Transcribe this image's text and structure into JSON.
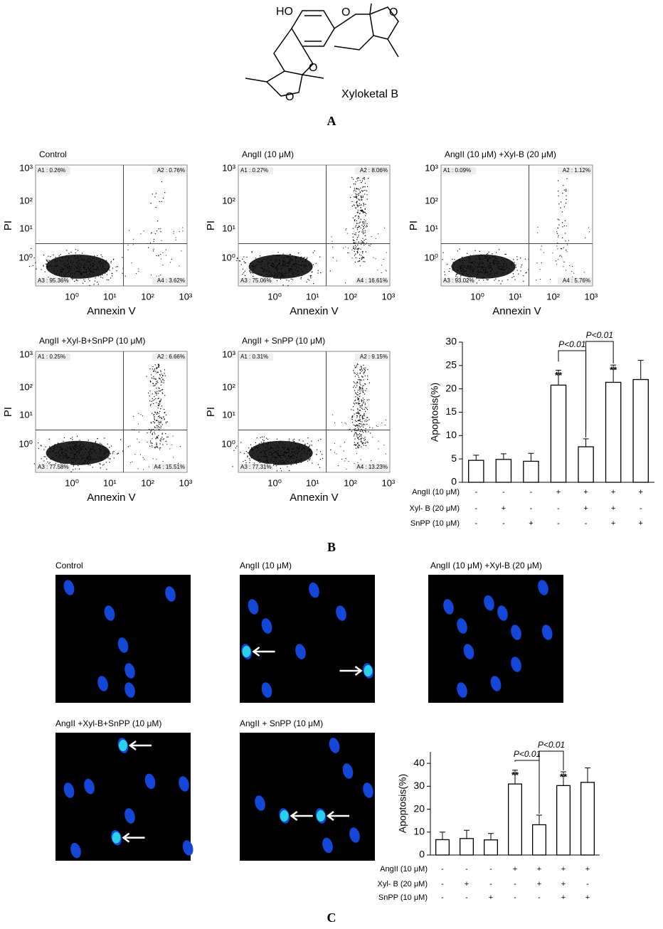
{
  "panel_a": {
    "label": "A",
    "compound": "Xyloketal B",
    "hydroxyl": "HO",
    "oxygen": "O"
  },
  "panel_b": {
    "label": "B",
    "x_label": "Annexin V",
    "y_label": "PI",
    "log_ticks": [
      "10⁰",
      "10¹",
      "10²",
      "10³"
    ],
    "flow_plots": [
      {
        "title": "Control",
        "quadrants": [
          "A1 : 0.26%",
          "A2 : 0.76%",
          "A3 : 95.36%",
          "A4 : 3.62%"
        ]
      },
      {
        "title": "AngII (10 μM)",
        "quadrants": [
          "A1 : 0.27%",
          "A2 : 8.06%",
          "A3 : 75.06%",
          "A4 : 16.61%"
        ]
      },
      {
        "title": "AngII (10 μM) +Xyl-B (20 μM)",
        "quadrants": [
          "A1 : 0.09%",
          "A2 : 1.12%",
          "A3 : 93.02%",
          "A4 : 5.76%"
        ]
      },
      {
        "title": "AngII +Xyl-B+SnPP (10 μM)",
        "quadrants": [
          "A1 : 0.25%",
          "A2 : 6.66%",
          "A3 : 77.58%",
          "A4 : 15.51%"
        ]
      },
      {
        "title": "AngII + SnPP (10 μM)",
        "quadrants": [
          "A1 : 0.31%",
          "A2 : 9.15%",
          "A3 : 77.31%",
          "A4 : 13.23%"
        ]
      }
    ]
  },
  "panel_c": {
    "label": "C",
    "images": [
      {
        "title": "Control"
      },
      {
        "title": "AngII (10 μM)"
      },
      {
        "title": "AngII (10 μM) +Xyl-B (20 μM)"
      },
      {
        "title": "AngII +Xyl-B+SnPP (10 μM)"
      },
      {
        "title": "AngII + SnPP (10 μM)"
      }
    ]
  },
  "chart_data": [
    {
      "type": "bar",
      "y_label": "Apoptosis(%)",
      "values": [
        4.7,
        4.9,
        4.5,
        20.8,
        7.6,
        21.4,
        22.0
      ],
      "errors": [
        1.1,
        1.2,
        1.7,
        3.2,
        1.7,
        3.7,
        4.1
      ],
      "ylim": [
        0,
        30
      ],
      "yticks": [
        0,
        5,
        10,
        15,
        20,
        25,
        30
      ],
      "stars": [
        {
          "index": 3,
          "label": "**"
        },
        {
          "index": 5,
          "label": "**"
        }
      ],
      "brackets": [
        {
          "from": 3,
          "to": 4,
          "label": "P<0.01"
        },
        {
          "from": 4,
          "to": 5,
          "label": "P<0.01"
        }
      ],
      "conditions": [
        {
          "name": "AngII (10 μM)",
          "signs": [
            "-",
            "-",
            "-",
            "+",
            "+",
            "+",
            "+"
          ]
        },
        {
          "name": "Xyl- B (20 μM)",
          "signs": [
            "-",
            "+",
            "-",
            "-",
            "+",
            "+",
            "-"
          ]
        },
        {
          "name": "SnPP (10 μM)",
          "signs": [
            "-",
            "-",
            "+",
            "-",
            "-",
            "+",
            "+"
          ]
        }
      ]
    },
    {
      "type": "bar",
      "y_label": "Apoptosis(%)",
      "values": [
        6.7,
        7.2,
        6.6,
        31.0,
        13.2,
        30.3,
        31.7
      ],
      "errors": [
        3.3,
        3.6,
        2.8,
        6.0,
        4.2,
        6.0,
        6.3
      ],
      "ylim": [
        0,
        45
      ],
      "yticks": [
        0,
        10,
        20,
        30,
        40
      ],
      "stars": [
        {
          "index": 3,
          "label": "**"
        },
        {
          "index": 5,
          "label": "**"
        }
      ],
      "brackets": [
        {
          "from": 3,
          "to": 4,
          "label": "P<0.01"
        },
        {
          "from": 4,
          "to": 5,
          "label": "P<0.01"
        }
      ],
      "conditions": [
        {
          "name": "AngII (10 μM)",
          "signs": [
            "-",
            "-",
            "-",
            "+",
            "+",
            "+",
            "+"
          ]
        },
        {
          "name": "Xyl- B (20 μM)",
          "signs": [
            "-",
            "+",
            "-",
            "-",
            "+",
            "+",
            "-"
          ]
        },
        {
          "name": "SnPP (10 μM)",
          "signs": [
            "-",
            "-",
            "+",
            "-",
            "-",
            "+",
            "+"
          ]
        }
      ]
    }
  ]
}
